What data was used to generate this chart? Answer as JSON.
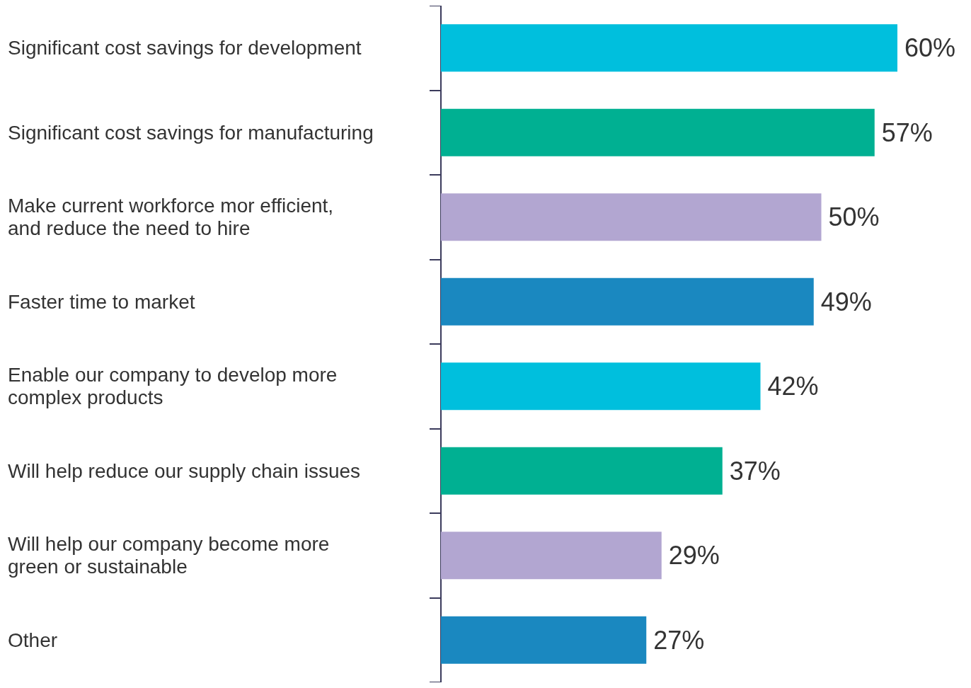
{
  "chart_data": {
    "type": "bar",
    "orientation": "horizontal",
    "categories": [
      "Significant cost savings for development",
      "Significant cost savings for manufacturing",
      "Make current workforce mor efficient,\nand reduce the need to hire",
      "Faster time to market",
      "Enable our company to develop more\ncomplex products",
      "Will help reduce our supply chain issues",
      "Will help our company become more\ngreen or sustainable",
      "Other"
    ],
    "values": [
      60,
      57,
      50,
      49,
      42,
      37,
      29,
      27
    ],
    "value_labels": [
      "60%",
      "57%",
      "50%",
      "49%",
      "42%",
      "37%",
      "29%",
      "27%"
    ],
    "colors": [
      "#00bfdd",
      "#00b092",
      "#b2a6d1",
      "#1a88c0",
      "#00bfdd",
      "#00b092",
      "#b2a6d1",
      "#1a88c0"
    ],
    "tick_labels": "y"
  }
}
